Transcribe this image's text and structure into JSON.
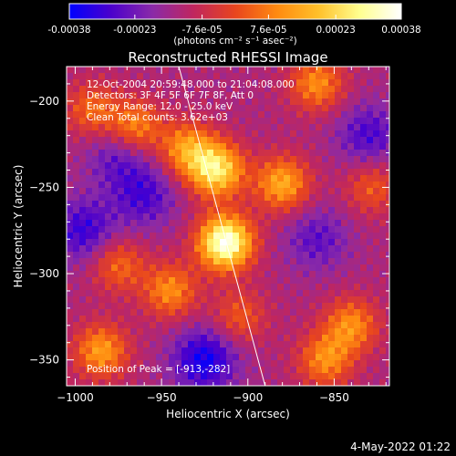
{
  "colorbar": {
    "ticks": [
      "-0.00038",
      "-0.00023",
      "-7.6e-05",
      "7.6e-05",
      "0.00023",
      "0.00038"
    ],
    "tick_values": [
      -0.00038,
      -0.00023,
      -7.6e-05,
      7.6e-05,
      0.00023,
      0.00038
    ],
    "range": [
      -0.00038,
      0.00038
    ],
    "unit_label": "(photons cm⁻² s⁻¹ asec⁻²)",
    "colors": [
      "#0000ff",
      "#4b00cc",
      "#8a2aa8",
      "#c0265e",
      "#e8451e",
      "#ff8a10",
      "#ffc02a",
      "#ffff90",
      "#ffffff"
    ]
  },
  "chart_data": {
    "type": "heatmap",
    "title": "Reconstructed RHESSI Image",
    "xlabel": "Heliocentric X (arcsec)",
    "ylabel": "Heliocentric Y (arcsec)",
    "xlim": [
      -1005,
      -818
    ],
    "ylim": [
      -365,
      -180
    ],
    "x_ticks": [
      -1000,
      -950,
      -900,
      -850
    ],
    "x_tick_labels": [
      "−1000",
      "−950",
      "−900",
      "−850"
    ],
    "y_ticks": [
      -200,
      -250,
      -300,
      -350
    ],
    "y_tick_labels": [
      "−200",
      "−250",
      "−300",
      "−350"
    ],
    "annotations": [
      "12-Oct-2004 20:59:48.000 to 21:04:08.000",
      "Detectors: 3F 4F 5F 6F 7F 8F, Att 0",
      "Energy Range: 12.0 - 25.0 keV",
      "Clean    Total counts: 3.62e+03"
    ],
    "peak_label": "Position of Peak = [-913,-282]",
    "peak": [
      -913,
      -282
    ],
    "limb_line": [
      [
        -940,
        -180
      ],
      [
        -890,
        -365
      ]
    ],
    "sources": [
      {
        "x": -913,
        "y": -282,
        "amp": 1.0
      },
      {
        "x": -918,
        "y": -240,
        "amp": 0.75
      },
      {
        "x": -935,
        "y": -228,
        "amp": 0.5
      },
      {
        "x": -880,
        "y": -248,
        "amp": 0.55
      },
      {
        "x": -965,
        "y": -215,
        "amp": 0.45
      },
      {
        "x": -990,
        "y": -205,
        "amp": 0.35
      },
      {
        "x": -860,
        "y": -190,
        "amp": 0.45
      },
      {
        "x": -945,
        "y": -310,
        "amp": 0.45
      },
      {
        "x": -985,
        "y": -345,
        "amp": 0.5
      },
      {
        "x": -840,
        "y": -330,
        "amp": 0.45
      },
      {
        "x": -855,
        "y": -350,
        "amp": 0.45
      },
      {
        "x": -905,
        "y": -325,
        "amp": 0.3
      },
      {
        "x": -975,
        "y": -295,
        "amp": 0.35
      },
      {
        "x": -828,
        "y": -250,
        "amp": 0.3
      }
    ],
    "negative_regions": [
      {
        "x": -925,
        "y": -350,
        "amp": 0.45
      },
      {
        "x": -995,
        "y": -275,
        "amp": 0.35
      },
      {
        "x": -960,
        "y": -255,
        "amp": 0.3
      },
      {
        "x": -860,
        "y": -280,
        "amp": 0.25
      },
      {
        "x": -830,
        "y": -220,
        "amp": 0.3
      },
      {
        "x": -975,
        "y": -232,
        "amp": 0.25
      }
    ]
  },
  "footer": {
    "date": "4-May-2022 01:22"
  }
}
